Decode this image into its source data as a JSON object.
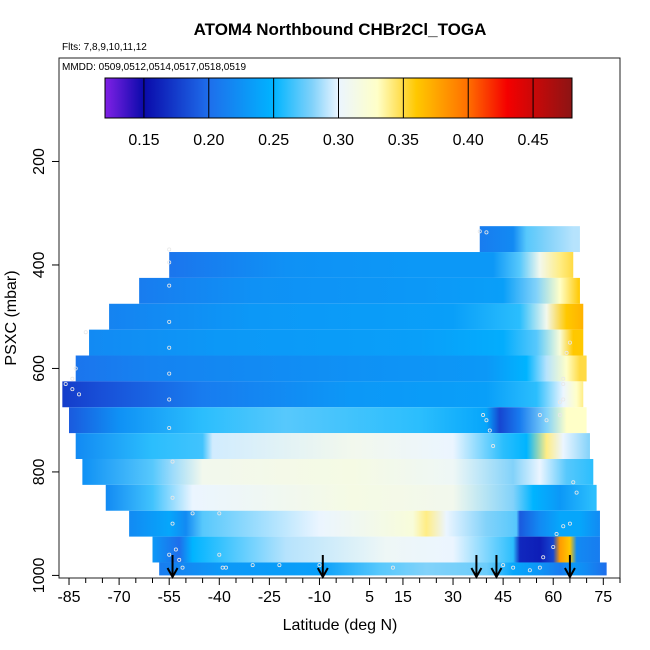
{
  "chart_data": {
    "type": "heatmap",
    "title": "ATOM4 Northbound CHBr2Cl_TOGA",
    "subtitle_flights": "Flts: 7,8,9,10,11,12",
    "subtitle_dates": "MMDD: 0509,0512,0514,0517,0518,0519",
    "xlabel": "Latitude (deg N)",
    "ylabel": "PSXC (mbar)",
    "xlim": [
      -88,
      80
    ],
    "ylim": [
      1005,
      0
    ],
    "x_ticks": [
      -85,
      -70,
      -55,
      -40,
      -25,
      -10,
      5,
      15,
      30,
      45,
      60,
      75
    ],
    "x_tick_labels": [
      "-85",
      "-70",
      "-55",
      "-40",
      "-25",
      "-10",
      "5",
      "15",
      "30",
      "45",
      "60",
      "75"
    ],
    "y_ticks": [
      200,
      400,
      600,
      800,
      1000
    ],
    "y_tick_labels": [
      "200",
      "400",
      "600",
      "800",
      "1000"
    ],
    "colorbar": {
      "range": [
        0.12,
        0.48
      ],
      "ticks": [
        0.15,
        0.2,
        0.25,
        0.3,
        0.35,
        0.4,
        0.45
      ],
      "tick_labels": [
        "0.15",
        "0.20",
        "0.25",
        "0.30",
        "0.35",
        "0.40",
        "0.45"
      ]
    },
    "arrows_latitude": [
      -54,
      -9,
      37,
      43,
      65
    ],
    "bands": [
      {
        "p_top": 325,
        "p_bot": 375,
        "lat_start": 38,
        "lat_end": 68,
        "stops": [
          [
            38,
            0.21
          ],
          [
            48,
            0.22
          ],
          [
            52,
            0.27
          ],
          [
            58,
            0.28
          ],
          [
            66,
            0.29
          ],
          [
            68,
            0.29
          ]
        ]
      },
      {
        "p_top": 375,
        "p_bot": 425,
        "lat_start": -55,
        "lat_end": 66,
        "stops": [
          [
            -55,
            0.205
          ],
          [
            -20,
            0.225
          ],
          [
            20,
            0.23
          ],
          [
            42,
            0.23
          ],
          [
            50,
            0.27
          ],
          [
            56,
            0.31
          ],
          [
            62,
            0.34
          ],
          [
            66,
            0.35
          ]
        ]
      },
      {
        "p_top": 425,
        "p_bot": 475,
        "lat_start": -64,
        "lat_end": 68,
        "stops": [
          [
            -64,
            0.21
          ],
          [
            -30,
            0.225
          ],
          [
            20,
            0.23
          ],
          [
            45,
            0.235
          ],
          [
            55,
            0.28
          ],
          [
            62,
            0.33
          ],
          [
            66,
            0.35
          ],
          [
            68,
            0.36
          ]
        ]
      },
      {
        "p_top": 475,
        "p_bot": 525,
        "lat_start": -73,
        "lat_end": 69,
        "stops": [
          [
            -73,
            0.215
          ],
          [
            -30,
            0.23
          ],
          [
            30,
            0.235
          ],
          [
            50,
            0.26
          ],
          [
            58,
            0.31
          ],
          [
            64,
            0.36
          ],
          [
            69,
            0.37
          ]
        ]
      },
      {
        "p_top": 525,
        "p_bot": 575,
        "lat_start": -79,
        "lat_end": 69,
        "stops": [
          [
            -79,
            0.22
          ],
          [
            -40,
            0.23
          ],
          [
            20,
            0.235
          ],
          [
            45,
            0.245
          ],
          [
            55,
            0.27
          ],
          [
            62,
            0.32
          ],
          [
            66,
            0.36
          ],
          [
            69,
            0.36
          ]
        ]
      },
      {
        "p_top": 575,
        "p_bot": 625,
        "lat_start": -83,
        "lat_end": 70,
        "stops": [
          [
            -83,
            0.205
          ],
          [
            -60,
            0.215
          ],
          [
            0,
            0.225
          ],
          [
            40,
            0.23
          ],
          [
            52,
            0.25
          ],
          [
            58,
            0.29
          ],
          [
            64,
            0.33
          ],
          [
            68,
            0.35
          ],
          [
            70,
            0.35
          ]
        ]
      },
      {
        "p_top": 625,
        "p_bot": 675,
        "lat_start": -87,
        "lat_end": 69,
        "stops": [
          [
            -87,
            0.175
          ],
          [
            -75,
            0.185
          ],
          [
            -45,
            0.21
          ],
          [
            0,
            0.23
          ],
          [
            40,
            0.235
          ],
          [
            55,
            0.26
          ],
          [
            63,
            0.3
          ],
          [
            67,
            0.33
          ],
          [
            69,
            0.34
          ]
        ]
      },
      {
        "p_top": 675,
        "p_bot": 725,
        "lat_start": -85,
        "lat_end": 70,
        "stops": [
          [
            -85,
            0.19
          ],
          [
            -70,
            0.225
          ],
          [
            -45,
            0.26
          ],
          [
            -20,
            0.27
          ],
          [
            20,
            0.26
          ],
          [
            40,
            0.24
          ],
          [
            44,
            0.18
          ],
          [
            50,
            0.21
          ],
          [
            58,
            0.28
          ],
          [
            64,
            0.33
          ],
          [
            70,
            0.33
          ]
        ]
      },
      {
        "p_top": 725,
        "p_bot": 775,
        "lat_start": -83,
        "lat_end": 71,
        "stops": [
          [
            -83,
            0.22
          ],
          [
            -60,
            0.26
          ],
          [
            -45,
            0.265
          ],
          [
            -42,
            0.295
          ],
          [
            0,
            0.31
          ],
          [
            30,
            0.3
          ],
          [
            45,
            0.26
          ],
          [
            52,
            0.25
          ],
          [
            58,
            0.34
          ],
          [
            63,
            0.3
          ],
          [
            71,
            0.28
          ]
        ]
      },
      {
        "p_top": 775,
        "p_bot": 825,
        "lat_start": -81,
        "lat_end": 72,
        "stops": [
          [
            -81,
            0.225
          ],
          [
            -60,
            0.27
          ],
          [
            -54,
            0.285
          ],
          [
            -45,
            0.31
          ],
          [
            0,
            0.315
          ],
          [
            30,
            0.305
          ],
          [
            48,
            0.28
          ],
          [
            56,
            0.3
          ],
          [
            64,
            0.27
          ],
          [
            72,
            0.26
          ]
        ]
      },
      {
        "p_top": 825,
        "p_bot": 875,
        "lat_start": -74,
        "lat_end": 73,
        "stops": [
          [
            -74,
            0.22
          ],
          [
            -60,
            0.265
          ],
          [
            -48,
            0.3
          ],
          [
            0,
            0.315
          ],
          [
            30,
            0.31
          ],
          [
            48,
            0.28
          ],
          [
            54,
            0.25
          ],
          [
            62,
            0.23
          ],
          [
            72,
            0.26
          ]
        ]
      },
      {
        "p_top": 875,
        "p_bot": 925,
        "lat_start": -67,
        "lat_end": 74,
        "stops": [
          [
            -67,
            0.22
          ],
          [
            -55,
            0.24
          ],
          [
            -50,
            0.22
          ],
          [
            -45,
            0.27
          ],
          [
            -10,
            0.3
          ],
          [
            18,
            0.32
          ],
          [
            22,
            0.34
          ],
          [
            28,
            0.3
          ],
          [
            40,
            0.28
          ],
          [
            49,
            0.27
          ],
          [
            50,
            0.19
          ],
          [
            56,
            0.22
          ],
          [
            62,
            0.24
          ],
          [
            68,
            0.24
          ],
          [
            74,
            0.22
          ]
        ]
      },
      {
        "p_top": 925,
        "p_bot": 975,
        "lat_start": -60,
        "lat_end": 74,
        "stops": [
          [
            -60,
            0.23
          ],
          [
            -52,
            0.2
          ],
          [
            -48,
            0.25
          ],
          [
            -20,
            0.29
          ],
          [
            10,
            0.305
          ],
          [
            30,
            0.3
          ],
          [
            48,
            0.26
          ],
          [
            50,
            0.165
          ],
          [
            56,
            0.16
          ],
          [
            60,
            0.18
          ],
          [
            62,
            0.38
          ],
          [
            65,
            0.36
          ],
          [
            67,
            0.22
          ],
          [
            74,
            0.21
          ]
        ]
      },
      {
        "p_top": 975,
        "p_bot": 1000,
        "lat_start": -58,
        "lat_end": 76,
        "stops": [
          [
            -58,
            0.21
          ],
          [
            -40,
            0.23
          ],
          [
            -10,
            0.235
          ],
          [
            8,
            0.27
          ],
          [
            22,
            0.28
          ],
          [
            40,
            0.275
          ],
          [
            48,
            0.24
          ],
          [
            55,
            0.23
          ],
          [
            62,
            0.21
          ],
          [
            66,
            0.23
          ],
          [
            70,
            0.22
          ],
          [
            76,
            0.2
          ]
        ]
      }
    ],
    "sample_points": [
      [
        -55,
        370
      ],
      [
        -55,
        395
      ],
      [
        -55,
        440
      ],
      [
        -55,
        510
      ],
      [
        -55,
        560
      ],
      [
        -55,
        610
      ],
      [
        -55,
        660
      ],
      [
        -55,
        715
      ],
      [
        -54,
        780
      ],
      [
        -54,
        850
      ],
      [
        -54,
        900
      ],
      [
        -53,
        950
      ],
      [
        -52,
        970
      ],
      [
        -51,
        985
      ],
      [
        -83,
        600
      ],
      [
        -84,
        620
      ],
      [
        -84,
        640
      ],
      [
        -82,
        650
      ],
      [
        -86,
        630
      ],
      [
        -80,
        530
      ],
      [
        -40,
        960
      ],
      [
        -39,
        985
      ],
      [
        -38,
        985
      ],
      [
        -30,
        980
      ],
      [
        -55,
        960
      ],
      [
        -48,
        880
      ],
      [
        -40,
        880
      ],
      [
        38,
        335
      ],
      [
        40,
        337
      ],
      [
        39,
        690
      ],
      [
        40,
        700
      ],
      [
        41,
        720
      ],
      [
        42,
        750
      ],
      [
        56,
        690
      ],
      [
        58,
        700
      ],
      [
        62,
        665
      ],
      [
        63,
        660
      ],
      [
        62,
        690
      ],
      [
        63,
        620
      ],
      [
        63,
        630
      ],
      [
        66,
        820
      ],
      [
        67,
        840
      ],
      [
        65,
        900
      ],
      [
        63,
        905
      ],
      [
        61,
        920
      ],
      [
        60,
        945
      ],
      [
        57,
        965
      ],
      [
        56,
        985
      ],
      [
        53,
        990
      ],
      [
        48,
        985
      ],
      [
        45,
        980
      ],
      [
        -22,
        980
      ],
      [
        12,
        985
      ],
      [
        -10,
        980
      ],
      [
        65,
        550
      ],
      [
        64,
        570
      ]
    ]
  }
}
